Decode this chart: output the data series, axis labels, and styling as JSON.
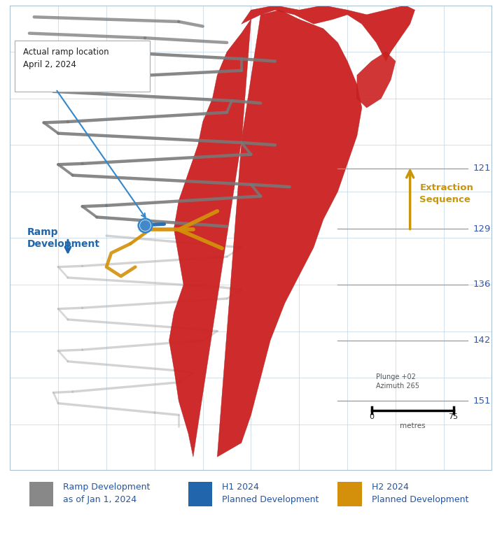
{
  "background_color": "#d8e8f0",
  "plot_bg_color": "#d8e8f0",
  "outer_bg_color": "#ffffff",
  "legend": [
    {
      "label": "Ramp Development\nas of Jan 1, 2024",
      "color": "#888888"
    },
    {
      "label": "H1 2024\nPlanned Development",
      "color": "#2166ac"
    },
    {
      "label": "H2 2024\nPlanned Development",
      "color": "#d4900a"
    }
  ],
  "annotation_text": "Actual ramp location\nApril 2, 2024",
  "annotation_color": "#3388cc",
  "ramp_label": "Ramp\nDevelopment",
  "ramp_label_color": "#2166ac",
  "extraction_label": "Extraction\nSequence",
  "extraction_color": "#c8960a",
  "level_labels": [
    "121",
    "129",
    "136",
    "142",
    "151"
  ],
  "level_label_color": "#3355aa",
  "scale_text": "Plunge +02\nAzimuth 265",
  "scale_label": "metres",
  "scale_0": "0",
  "scale_75": "75",
  "grid_color": "#c0d4e4",
  "border_color": "#a8c0d4",
  "gray_dark": "#787878",
  "gray_light": "#b0b0b0",
  "red_ore": "#cc2020",
  "orange_dev": "#d4900a",
  "blue_dev": "#2166ac",
  "blue_dot": "#4488cc"
}
